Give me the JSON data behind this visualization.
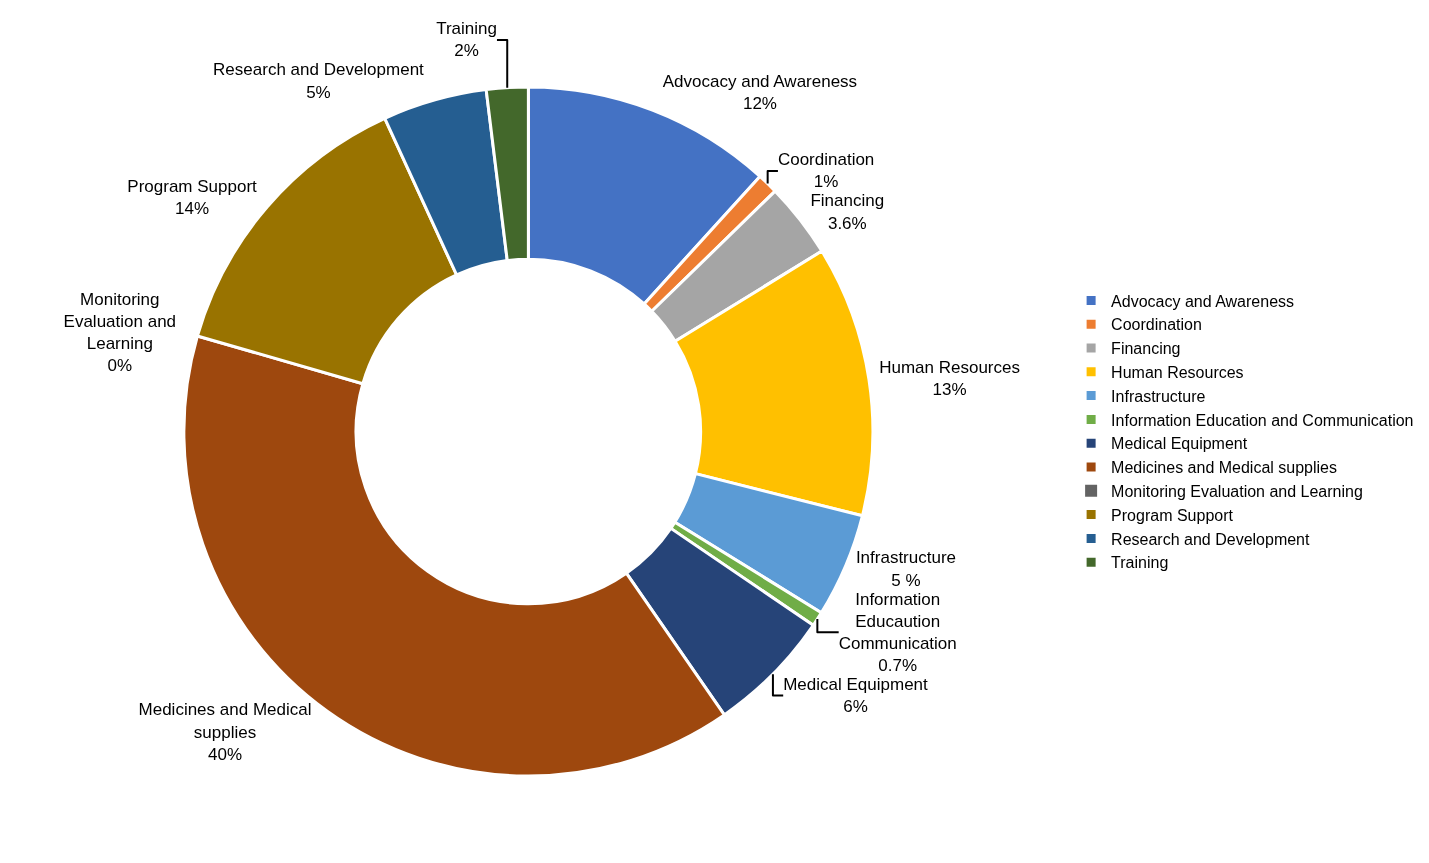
{
  "chart_data": {
    "type": "donut",
    "categories": [
      "Advocacy and Awareness",
      "Coordination",
      "Financing",
      "Human Resources",
      "Infrastructure",
      "Information Education and Communication",
      "Medical Equipment",
      "Medicines and Medical supplies",
      "Monitoring Evaluation and Learning",
      "Program Support",
      "Research and Development",
      "Training"
    ],
    "values": [
      12,
      1,
      3.6,
      13,
      5,
      0.7,
      6,
      40,
      0,
      14,
      5,
      2
    ],
    "colors": [
      "#4472c4",
      "#ed7d31",
      "#a5a5a5",
      "#ffc000",
      "#5b9bd5",
      "#70ad47",
      "#264478",
      "#9e480e",
      "#636363",
      "#997300",
      "#255e91",
      "#43682b"
    ],
    "value_labels": [
      "Advocacy and Awareness\n12%",
      "Coordination\n1%",
      "Financing\n3.6%",
      "Human Resources\n13%",
      "Infrastructure\n5 %",
      "Information\nEducaution\nCommunication\n0.7%",
      "Medical Equipment\n6%",
      "Medicines and Medical\nsupplies\n40%",
      "Monitoring\nEvaluation and\nLearning\n0%",
      "Program Support\n14%",
      "Research and Development\n5%",
      "Training\n2%"
    ],
    "legend": "right"
  }
}
